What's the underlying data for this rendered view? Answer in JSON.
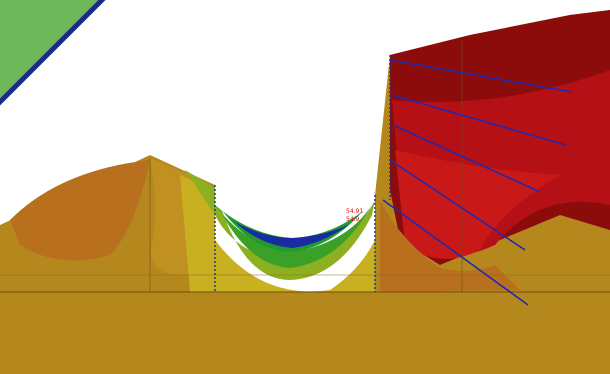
{
  "labels": [
    "54.91",
    "54.9"
  ]
}
